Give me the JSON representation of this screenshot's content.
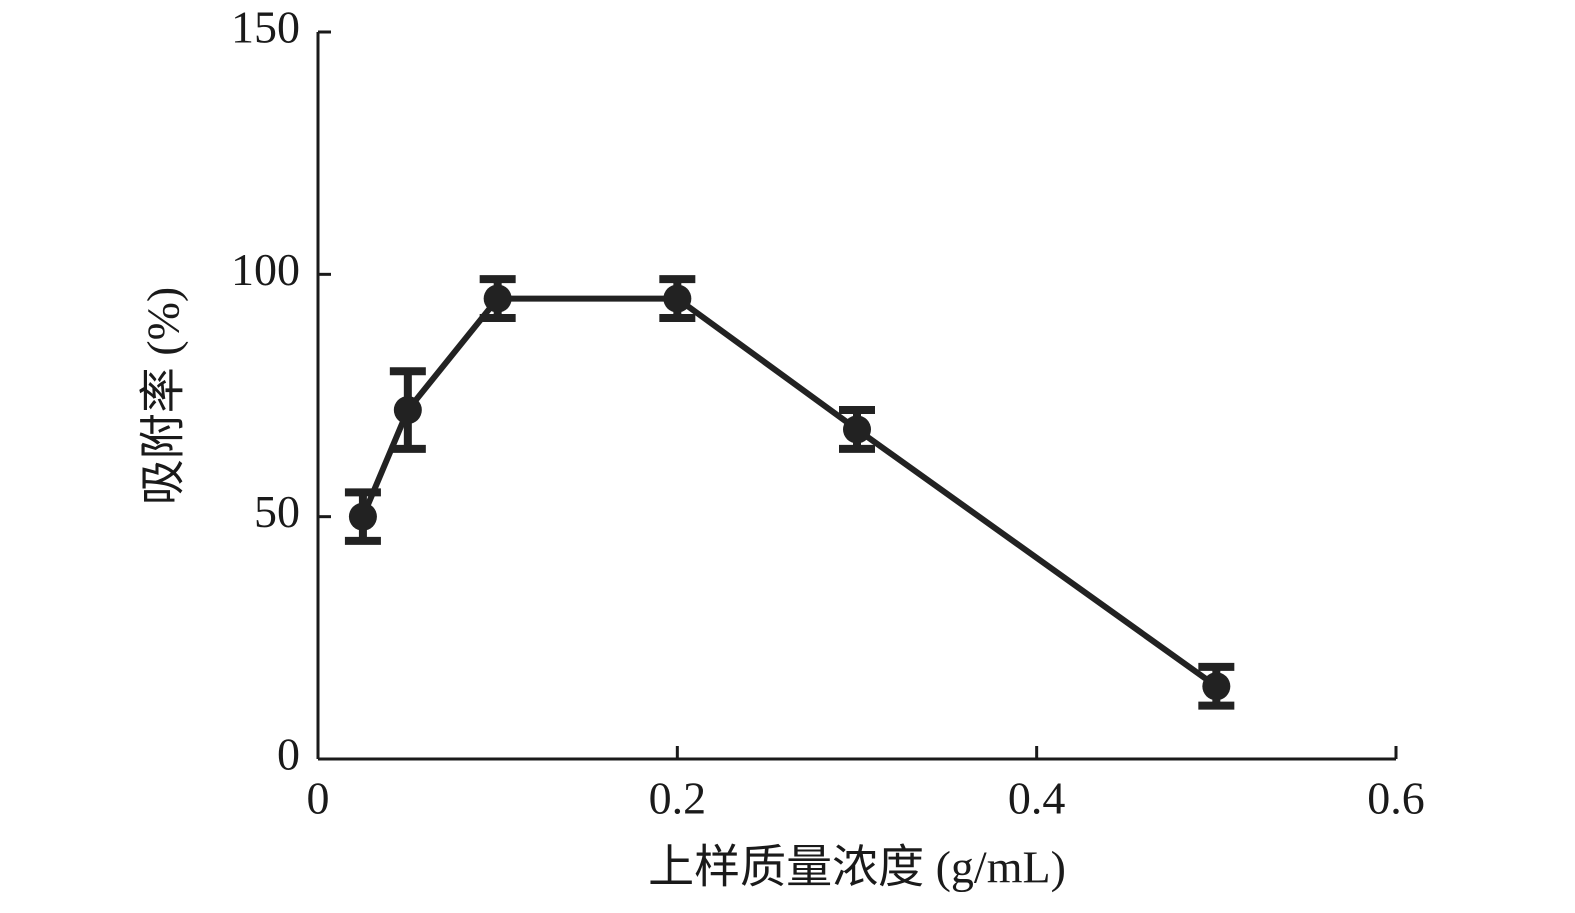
{
  "chart_data": {
    "type": "line",
    "x_label": "上样质量浓度 (g/mL)",
    "y_label": "吸附率 (%)",
    "series": [
      {
        "color": "#222222",
        "x": [
          0.025,
          0.05,
          0.1,
          0.2,
          0.3,
          0.5
        ],
        "values": [
          50,
          72,
          95,
          95,
          68,
          15
        ],
        "errors": [
          5,
          8,
          4,
          4,
          4,
          4
        ]
      }
    ],
    "xlim": [
      0,
      0.6
    ],
    "xticks": [
      0,
      0.2,
      0.4,
      0.6
    ],
    "ylim": [
      0,
      150
    ],
    "yticks": [
      0,
      50,
      100,
      150
    ]
  }
}
